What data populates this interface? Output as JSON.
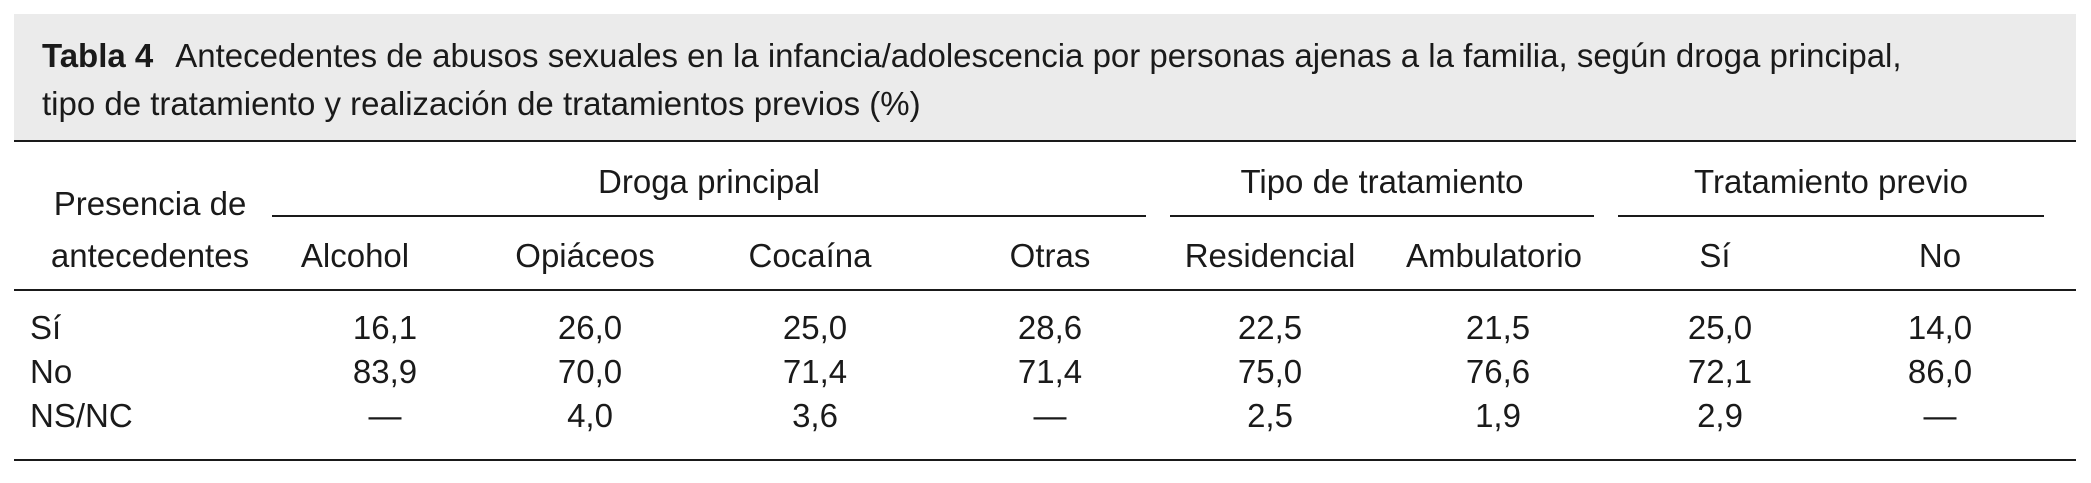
{
  "table": {
    "label": "Tabla 4",
    "title_line1": "Antecedentes de abusos sexuales en la infancia/adolescencia por personas ajenas a la familia, según droga principal,",
    "title_line2": "tipo de tratamiento y realización de tratamientos previos (%)",
    "stub_header_line1": "Presencia de",
    "stub_header_line2": "antecedentes",
    "groups": [
      {
        "label": "Droga principal"
      },
      {
        "label": "Tipo de tratamiento"
      },
      {
        "label": "Tratamiento previo"
      }
    ],
    "columns": [
      "Alcohol",
      "Opiáceos",
      "Cocaína",
      "Otras",
      "Residencial",
      "Ambulatorio",
      "Sí",
      "No"
    ],
    "rows": [
      {
        "label": "Sí",
        "values": [
          "16,1",
          "26,0",
          "25,0",
          "28,6",
          "22,5",
          "21,5",
          "25,0",
          "14,0"
        ]
      },
      {
        "label": "No",
        "values": [
          "83,9",
          "70,0",
          "71,4",
          "71,4",
          "75,0",
          "76,6",
          "72,1",
          "86,0"
        ]
      },
      {
        "label": "NS/NC",
        "values": [
          "—",
          "4,0",
          "3,6",
          "—",
          "2,5",
          "1,9",
          "2,9",
          "—"
        ]
      }
    ]
  }
}
